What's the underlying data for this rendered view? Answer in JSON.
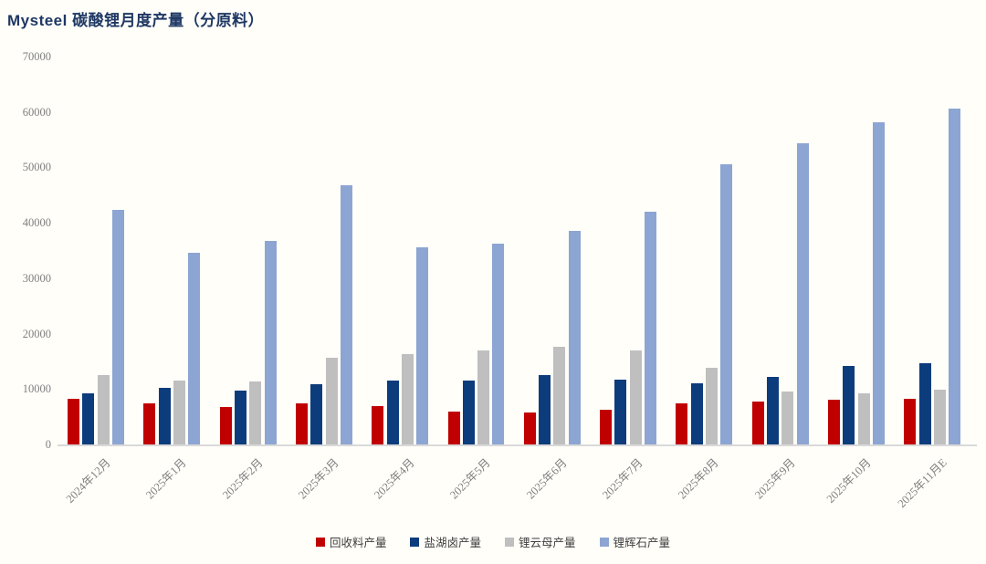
{
  "title": "Mysteel 碳酸锂月度产量（分原料）",
  "colors": {
    "title_text": "#1f3864",
    "axis_text": "#7f7f7f",
    "legend_text": "#3f3f3f",
    "baseline": "#d9d9d9",
    "background": "#fffef9"
  },
  "chart_data": {
    "type": "bar",
    "title": "Mysteel 碳酸锂月度产量（分原料）",
    "xlabel": "",
    "ylabel": "",
    "ylim": [
      0,
      70000
    ],
    "ytick_step": 10000,
    "ytick_labels": [
      "0",
      "10000",
      "20000",
      "30000",
      "40000",
      "50000",
      "60000",
      "70000"
    ],
    "grid": false,
    "legend_position": "bottom",
    "categories": [
      "2024年12月",
      "2025年1月",
      "2025年2月",
      "2025年3月",
      "2025年4月",
      "2025年5月",
      "2025年6月",
      "2025年7月",
      "2025年8月",
      "2025年9月",
      "2025年10月",
      "2025年11月E"
    ],
    "series": [
      {
        "name": "回收料产量",
        "color": "#c00000",
        "values": [
          8200,
          7400,
          6700,
          7400,
          6900,
          6000,
          5700,
          6300,
          7400,
          7700,
          8000,
          8200
        ]
      },
      {
        "name": "盐湖卤产量",
        "color": "#0d3c7c",
        "values": [
          9200,
          10300,
          9700,
          10800,
          11500,
          11600,
          12500,
          11700,
          11100,
          12200,
          14200,
          14600
        ]
      },
      {
        "name": "锂云母产量",
        "color": "#bfbfbf",
        "values": [
          12500,
          11600,
          11300,
          15600,
          16300,
          16900,
          17700,
          17000,
          13900,
          9600,
          9200,
          9900
        ]
      },
      {
        "name": "锂辉石产量",
        "color": "#8ca5d2",
        "values": [
          42400,
          34600,
          36800,
          46800,
          35600,
          36200,
          38500,
          42000,
          50500,
          54300,
          58200,
          60600
        ]
      }
    ]
  }
}
